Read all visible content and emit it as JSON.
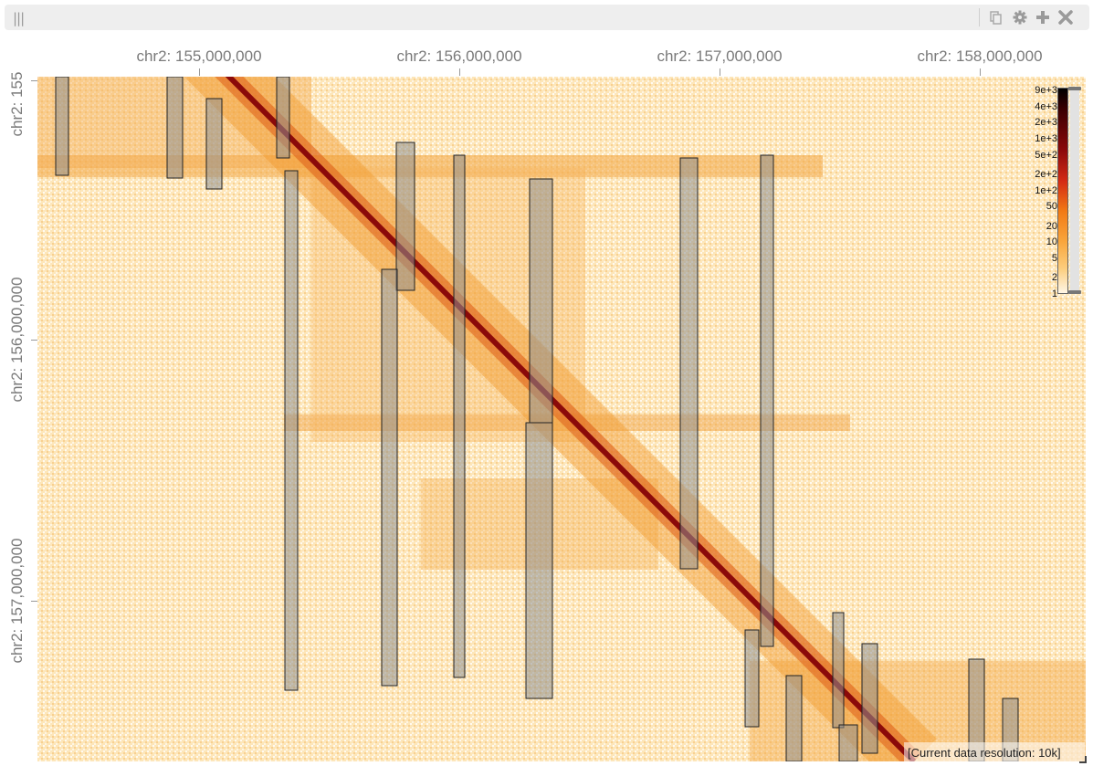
{
  "header": {
    "drag_glyph": "|||",
    "buttons": [
      "copy-icon",
      "gear-icon",
      "plus-icon",
      "close-icon"
    ]
  },
  "top_axis": {
    "ticks": [
      "chr2: 155,000,000",
      "chr2: 156,000,000",
      "chr2: 157,000,000",
      "chr2: 158,000,000"
    ]
  },
  "left_axis": {
    "ticks": [
      "chr2: 155",
      "chr2: 156,000,000",
      "chr2: 157,000,000"
    ]
  },
  "colorbar": {
    "labels": [
      "9e+3",
      "4e+3",
      "2e+3",
      "1e+3",
      "5e+2",
      "2e+2",
      "1e+2",
      "50",
      "20",
      "10",
      "5",
      "2",
      "1"
    ]
  },
  "status": {
    "resolution": "[Current data resolution: 10k]"
  },
  "colors": {
    "diagonal": "#8b0a0a",
    "band": "#f2a540",
    "background": "#fde6b9",
    "annotation_fill": "#8f8f8f"
  }
}
